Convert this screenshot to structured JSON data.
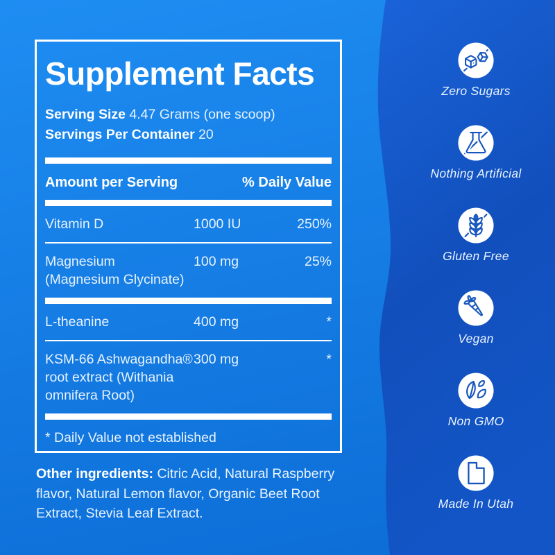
{
  "colors": {
    "bg_top": "#1E8DF2",
    "bg_bottom": "#0C6CD6",
    "wave_top": "#1A63D8",
    "wave_mid": "#114FBC",
    "wave_bottom": "#1355C6",
    "icon_stroke": "#1656BD",
    "text_soft": "#E8F3FF",
    "text_strong": "#FFFFFF"
  },
  "panel": {
    "title": "Supplement Facts",
    "serving_size_label": "Serving Size",
    "serving_size_value": "4.47 Grams (one scoop)",
    "servings_per_container_label": "Servings Per Container",
    "servings_per_container_value": "20",
    "columns": {
      "amount_header": "Amount per Serving",
      "dv_header": "% Daily Value"
    },
    "rows": [
      {
        "name": "Vitamin D",
        "amount": "1000 IU",
        "daily_value": "250%",
        "separator_after": "thin"
      },
      {
        "name": "Magnesium\n(Magnesium Glycinate)",
        "amount": "100 mg",
        "daily_value": "25%",
        "separator_after": "thick"
      },
      {
        "name": "L-theanine",
        "amount": "400 mg",
        "daily_value": "*",
        "separator_after": "thin"
      },
      {
        "name": "KSM-66 Ashwagandha®\nroot extract (Withania\nomnifera Root)",
        "amount": "300 mg",
        "daily_value": "*",
        "separator_after": "thick"
      }
    ],
    "footnote": "* Daily Value not established"
  },
  "other_ingredients": {
    "label": "Other ingredients:",
    "text": "Citric Acid, Natural Raspberry flavor, Natural Lemon flavor, Organic Beet Root Extract, Stevia Leaf Extract."
  },
  "badges": [
    {
      "icon": "zero-sugars-icon",
      "label": "Zero Sugars"
    },
    {
      "icon": "nothing-artificial-icon",
      "label": "Nothing Artificial"
    },
    {
      "icon": "gluten-free-icon",
      "label": "Gluten Free"
    },
    {
      "icon": "vegan-icon",
      "label": "Vegan"
    },
    {
      "icon": "non-gmo-icon",
      "label": "Non GMO"
    },
    {
      "icon": "made-in-utah-icon",
      "label": "Made In Utah"
    }
  ]
}
